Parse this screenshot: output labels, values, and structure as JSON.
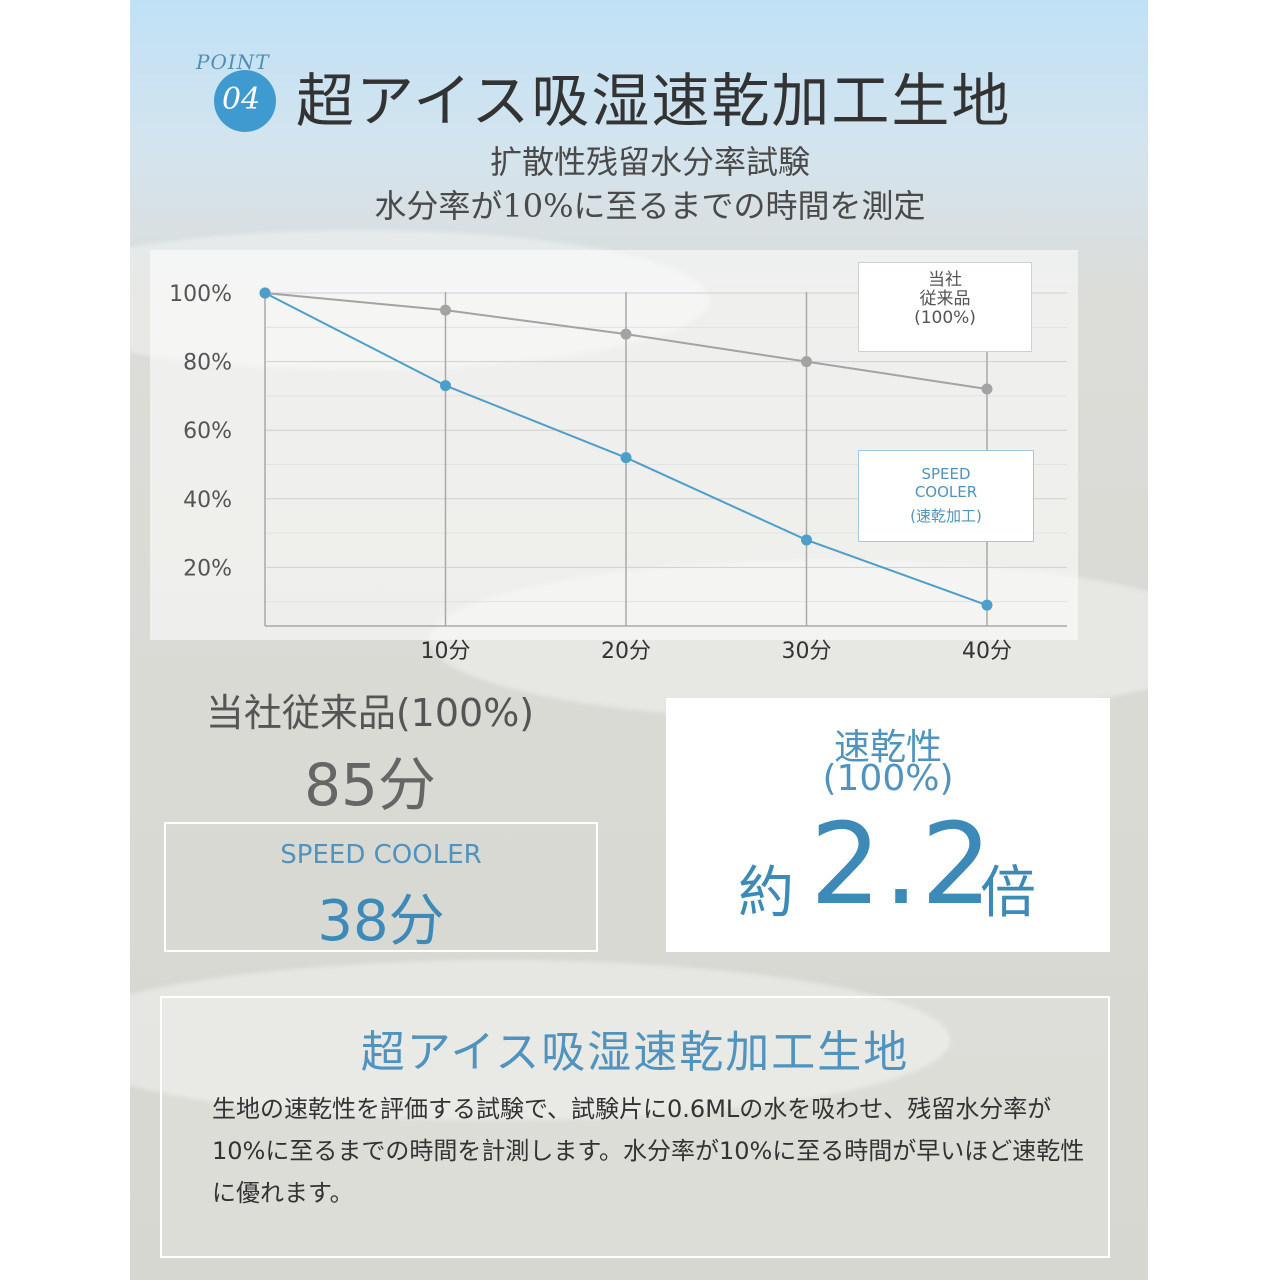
{
  "header": {
    "point_label": "POINT",
    "point_number": "04",
    "title": "超アイス吸湿速乾加工生地",
    "subtitle_line1": "扩散性残留水分率試験",
    "subtitle_line2": "水分率が10%に至るまでの時間を測定"
  },
  "chart_data": {
    "type": "line",
    "x": [
      0,
      10,
      20,
      30,
      40
    ],
    "x_tick_labels": [
      "10分",
      "20分",
      "30分",
      "40分"
    ],
    "y_tick_labels": [
      "100%",
      "80%",
      "60%",
      "40%",
      "20%"
    ],
    "ylim": [
      0,
      100
    ],
    "xlim": [
      0,
      44
    ],
    "grid": true,
    "series": [
      {
        "name": "当社従来品(100%)",
        "color": "#a3a3a3",
        "values": [
          100,
          95,
          88,
          80,
          72
        ]
      },
      {
        "name": "SPEED COOLER(速乾加工)",
        "color": "#4d9fcb",
        "values": [
          100,
          73,
          52,
          28,
          9
        ]
      }
    ]
  },
  "legend": {
    "conventional": [
      "当社",
      "従来品",
      "(100%)"
    ],
    "speed": [
      "SPEED",
      "COOLER",
      "(速乾加工)"
    ]
  },
  "results": {
    "conventional_label": "当社従来品(100%)",
    "conventional_value": "85分",
    "speed_label": "SPEED COOLER",
    "speed_value": "38分",
    "ratio_label_line1": "速乾性",
    "ratio_label_line2": "(100%)",
    "ratio_prefix": "約",
    "ratio_value": "2.2",
    "ratio_suffix": "倍"
  },
  "description": {
    "title": "超アイス吸湿速乾加工生地",
    "body": "生地の速乾性を評価する試験で、試験片に0.6MLの水を吸わせ、残留水分率が10%に至るまでの時間を計測します。水分率が10%に至る時間が早いほど速乾性に優れます。"
  },
  "colors": {
    "accent": "#3f9bcf",
    "conventional_line": "#a3a3a3",
    "speed_line": "#4d9fcb"
  }
}
